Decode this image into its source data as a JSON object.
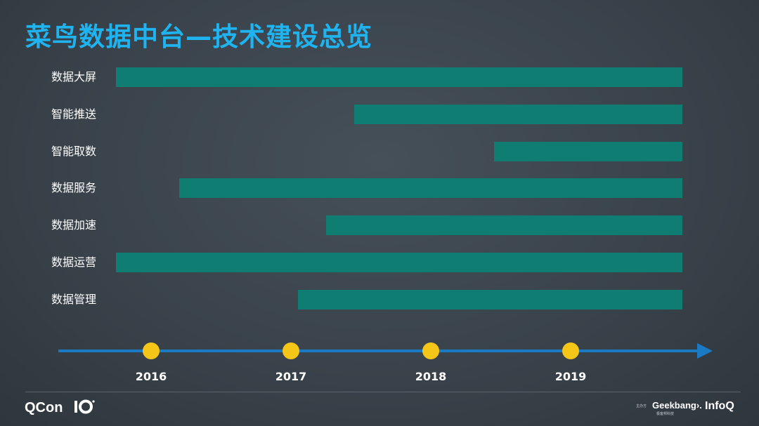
{
  "title": "菜鸟数据中台—技术建设总览",
  "chart_data": {
    "type": "bar",
    "orientation": "horizontal-timeline",
    "title": "菜鸟数据中台—技术建设总览",
    "x_ticks": [
      "2016",
      "2017",
      "2018",
      "2019"
    ],
    "xlim": [
      2015.3,
      2019.9
    ],
    "end": 2019.8,
    "series": [
      {
        "name": "数据大屏",
        "start": 2015.75
      },
      {
        "name": "智能推送",
        "start": 2017.45
      },
      {
        "name": "智能取数",
        "start": 2018.45
      },
      {
        "name": "数据服务",
        "start": 2016.2
      },
      {
        "name": "数据加速",
        "start": 2017.25
      },
      {
        "name": "数据运营",
        "start": 2015.75
      },
      {
        "name": "数据管理",
        "start": 2017.05
      }
    ]
  },
  "colors": {
    "title": "#1fb3f0",
    "bar": "#0f7d71",
    "axis": "#1a7bc4",
    "marker": "#f5c518"
  },
  "footer": {
    "brand": "QCon",
    "sponsor_small": "主办方",
    "geekbang": "Geekbang›.",
    "geekbang_sub": "极客邦科技",
    "infoq": "InfoQ"
  }
}
